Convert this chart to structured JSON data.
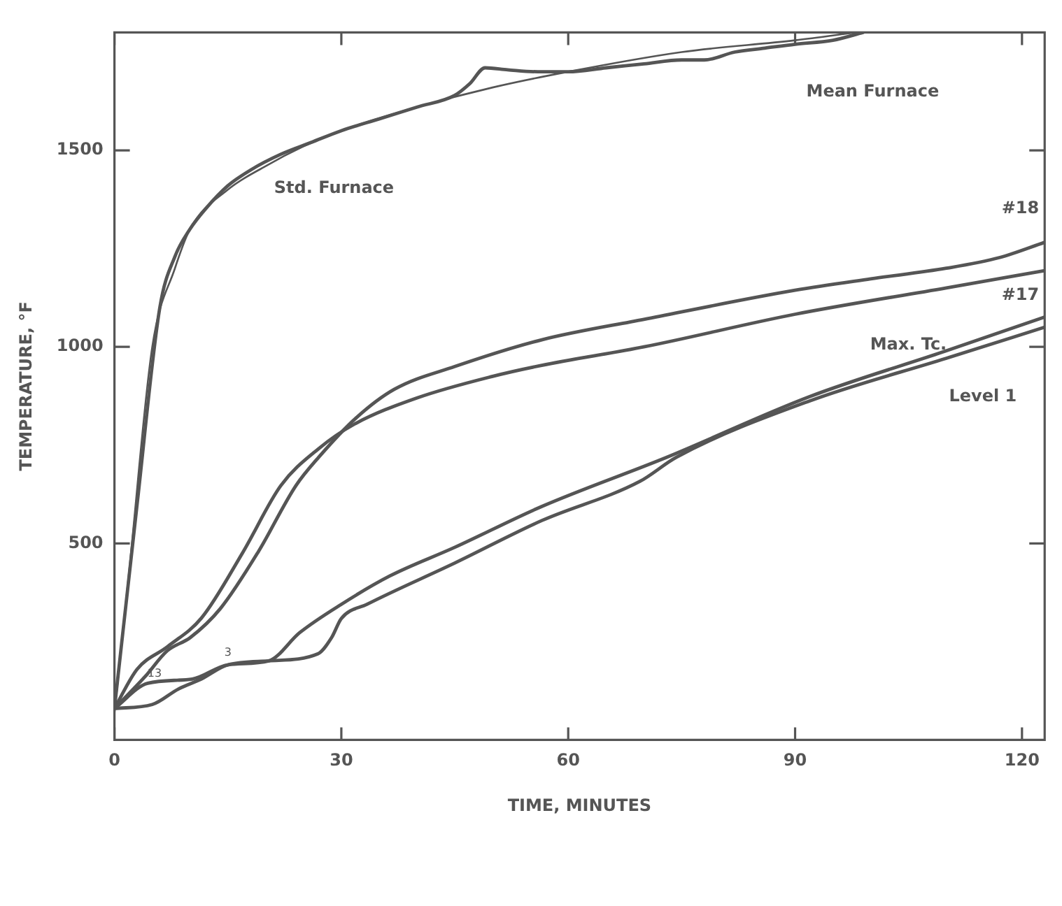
{
  "chart_data": {
    "type": "line",
    "xlabel": "TIME, MINUTES",
    "ylabel": "TEMPERATURE, °F",
    "xlim": [
      0,
      123
    ],
    "xticks": [
      0,
      30,
      60,
      90,
      120
    ],
    "ylim": [
      0,
      1800
    ],
    "yticks": [
      500,
      1000,
      1500
    ],
    "grid": false,
    "legend": false,
    "marker": "none",
    "line_style": "solid",
    "series": [
      {
        "name": "Std. Furnace",
        "color": "#555555",
        "x": [
          0,
          2,
          5,
          8,
          10,
          15,
          20,
          25,
          30,
          40,
          50,
          60,
          75,
          90,
          98
        ],
        "values": [
          68,
          440,
          1000,
          1200,
          1300,
          1400,
          1460,
          1510,
          1550,
          1610,
          1660,
          1700,
          1750,
          1780,
          1800
        ]
      },
      {
        "name": "Mean Furnace",
        "color": "#555555",
        "x": [
          0,
          3,
          6,
          8,
          10,
          12,
          15,
          18,
          22,
          26,
          30,
          35,
          40,
          45,
          47,
          49,
          52,
          56,
          60,
          65,
          70,
          75,
          78,
          82,
          86,
          90,
          95,
          99
        ],
        "values": [
          80,
          600,
          1100,
          1230,
          1300,
          1350,
          1410,
          1450,
          1490,
          1520,
          1550,
          1580,
          1610,
          1640,
          1670,
          1710,
          1705,
          1700,
          1700,
          1710,
          1720,
          1730,
          1730,
          1750,
          1760,
          1770,
          1780,
          1800
        ]
      },
      {
        "name": "#18",
        "color": "#555555",
        "x": [
          0,
          4,
          7,
          10,
          14,
          19,
          24,
          27,
          32,
          37,
          45,
          56.5,
          70,
          90,
          100,
          110,
          117,
          123
        ],
        "values": [
          80,
          160,
          227,
          260,
          334,
          478,
          647,
          719,
          820,
          892,
          950,
          1018,
          1070,
          1144,
          1173,
          1200,
          1227,
          1266
        ]
      },
      {
        "name": "#17",
        "color": "#555555",
        "x": [
          0,
          3,
          7,
          11.5,
          17,
          22,
          27,
          31.6,
          40,
          50,
          56.5,
          70,
          90,
          110,
          123
        ],
        "values": [
          80,
          180,
          237,
          310,
          478,
          647,
          741,
          802,
          870,
          925,
          953,
          1000,
          1083,
          1150,
          1194
        ]
      },
      {
        "name": "Max. Tc.",
        "color": "#555555",
        "x": [
          0,
          4.4,
          10.3,
          15,
          20.4,
          24.5,
          30,
          36.4,
          45,
          56.5,
          73,
          92,
          110,
          123
        ],
        "values": [
          80,
          144,
          155,
          191,
          201,
          273,
          345,
          417,
          490,
          594,
          719,
          874,
          990,
          1076
        ]
      },
      {
        "name": "Level 1",
        "color": "#555555",
        "x": [
          0,
          5,
          8.5,
          11.5,
          15,
          20.4,
          26.9,
          28.7,
          30,
          33.4,
          45,
          56.5,
          69.5,
          74.3,
          92,
          110,
          123
        ],
        "values": [
          80,
          90,
          130,
          155,
          191,
          201,
          219,
          260,
          309,
          345,
          450,
          558,
          658,
          719,
          863,
          971,
          1050
        ]
      }
    ],
    "annotations": [
      {
        "text": "13",
        "x": 5.3,
        "y": 147
      },
      {
        "text": "3",
        "x": 15,
        "y": 201
      }
    ]
  }
}
